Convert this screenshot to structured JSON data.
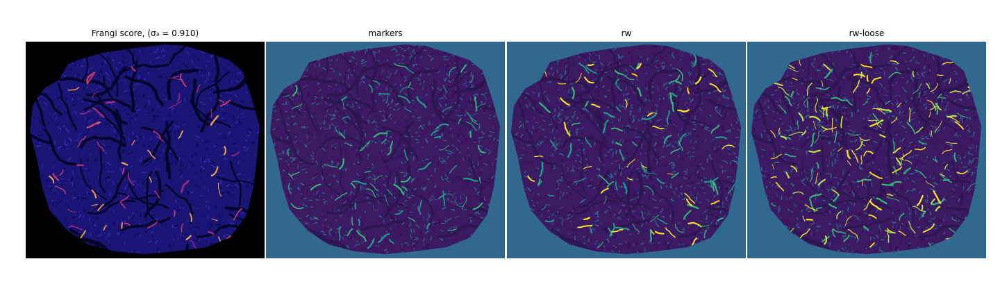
{
  "figure": {
    "panels": [
      {
        "title": "Frangi score, (σ₃ = 0.910)",
        "background": "#000000",
        "blob_fill": "#1a1475",
        "texture_colors": [
          "#0a0a40",
          "#3b2fb8",
          "#1b1b8c"
        ],
        "vessel_colors": [
          "#d23e6a",
          "#f0a050",
          "#b02a8a"
        ],
        "vessel_level": 0.25
      },
      {
        "title": "markers",
        "background": "#31688e",
        "blob_fill": "#3b1a63",
        "texture_colors": [
          "#440154",
          "#31688e",
          "#2a788e"
        ],
        "vessel_colors": [
          "#35b779",
          "#1f9e89"
        ],
        "vessel_level": 0.35
      },
      {
        "title": "rw",
        "background": "#31688e",
        "blob_fill": "#3b1a63",
        "texture_colors": [
          "#440154",
          "#31688e",
          "#2a788e"
        ],
        "vessel_colors": [
          "#35b779",
          "#1f9e89",
          "#fde725"
        ],
        "vessel_level": 0.45
      },
      {
        "title": "rw-loose",
        "background": "#31688e",
        "blob_fill": "#3b1a63",
        "texture_colors": [
          "#440154",
          "#31688e",
          "#2a788e"
        ],
        "vessel_colors": [
          "#fde725",
          "#35b779",
          "#bfe04a"
        ],
        "vessel_level": 0.75
      }
    ]
  }
}
